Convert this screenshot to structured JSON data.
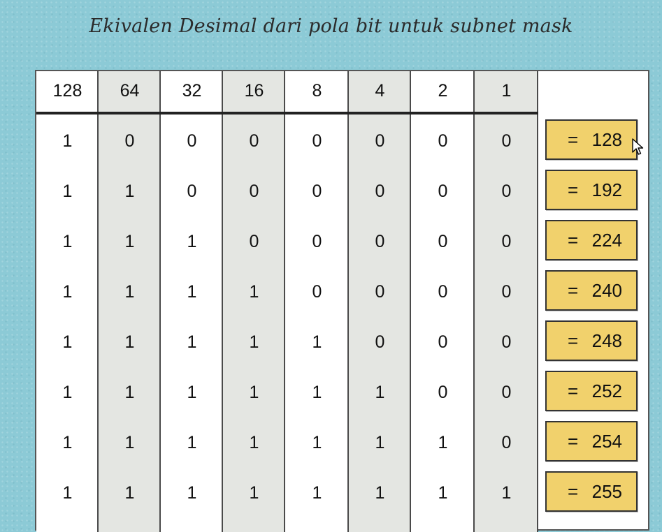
{
  "title": "Ekivalen Desimal dari pola bit untuk subnet mask",
  "headers": [
    "128",
    "64",
    "32",
    "16",
    "8",
    "4",
    "2",
    "1"
  ],
  "rows": [
    {
      "bits": [
        "1",
        "0",
        "0",
        "0",
        "0",
        "0",
        "0",
        "0"
      ],
      "eq": "=",
      "value": "128"
    },
    {
      "bits": [
        "1",
        "1",
        "0",
        "0",
        "0",
        "0",
        "0",
        "0"
      ],
      "eq": "=",
      "value": "192"
    },
    {
      "bits": [
        "1",
        "1",
        "1",
        "0",
        "0",
        "0",
        "0",
        "0"
      ],
      "eq": "=",
      "value": "224"
    },
    {
      "bits": [
        "1",
        "1",
        "1",
        "1",
        "0",
        "0",
        "0",
        "0"
      ],
      "eq": "=",
      "value": "240"
    },
    {
      "bits": [
        "1",
        "1",
        "1",
        "1",
        "1",
        "0",
        "0",
        "0"
      ],
      "eq": "=",
      "value": "248"
    },
    {
      "bits": [
        "1",
        "1",
        "1",
        "1",
        "1",
        "1",
        "0",
        "0"
      ],
      "eq": "=",
      "value": "252"
    },
    {
      "bits": [
        "1",
        "1",
        "1",
        "1",
        "1",
        "1",
        "1",
        "0"
      ],
      "eq": "=",
      "value": "254"
    },
    {
      "bits": [
        "1",
        "1",
        "1",
        "1",
        "1",
        "1",
        "1",
        "1"
      ],
      "eq": "=",
      "value": "255"
    }
  ],
  "colors": {
    "background": "#8ccad6",
    "shaded_column": "#e4e6e2",
    "result_box": "#f1d16c"
  },
  "icons": {
    "cursor": "mouse-pointer-icon"
  }
}
